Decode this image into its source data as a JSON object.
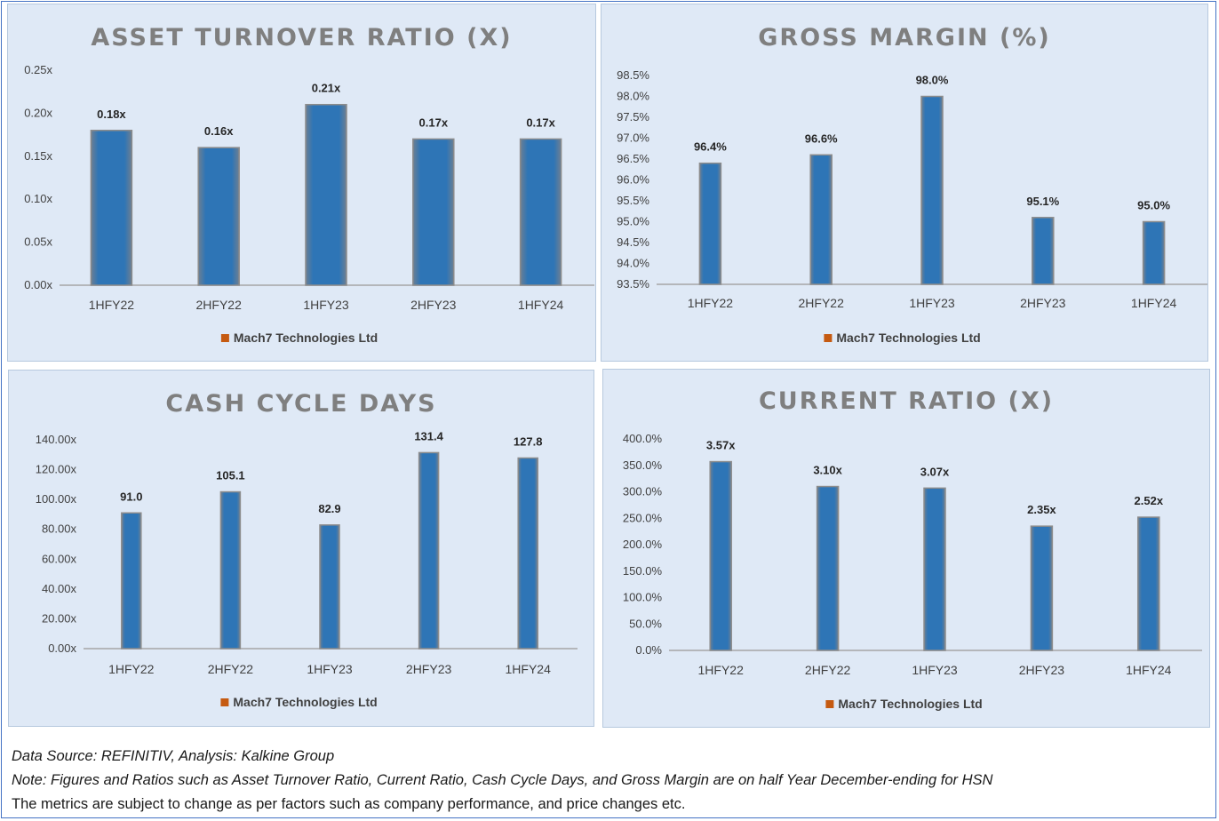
{
  "chart_data": [
    {
      "type": "bar",
      "title": "ASSET TURNOVER RATIO (X)",
      "categories": [
        "1HFY22",
        "2HFY22",
        "1HFY23",
        "2HFY23",
        "1HFY24"
      ],
      "series": [
        {
          "name": "Mach7 Technologies Ltd",
          "values": [
            0.18,
            0.16,
            0.21,
            0.17,
            0.17
          ]
        }
      ],
      "data_labels": [
        "0.18x",
        "0.16x",
        "0.21x",
        "0.17x",
        "0.17x"
      ],
      "ylim": [
        0,
        0.25
      ],
      "yticks": [
        0,
        0.05,
        0.1,
        0.15,
        0.2,
        0.25
      ],
      "ytick_labels": [
        "0.00x",
        "0.05x",
        "0.10x",
        "0.15x",
        "0.20x",
        "0.25x"
      ],
      "legend": "bottom"
    },
    {
      "type": "bar",
      "title": "GROSS MARGIN (%)",
      "categories": [
        "1HFY22",
        "2HFY22",
        "1HFY23",
        "2HFY23",
        "1HFY24"
      ],
      "series": [
        {
          "name": "Mach7 Technologies Ltd",
          "values": [
            96.4,
            96.6,
            98.0,
            95.1,
            95.0
          ]
        }
      ],
      "data_labels": [
        "96.4%",
        "96.6%",
        "98.0%",
        "95.1%",
        "95.0%"
      ],
      "ylim": [
        93.5,
        98.5
      ],
      "yticks": [
        93.5,
        94.0,
        94.5,
        95.0,
        95.5,
        96.0,
        96.5,
        97.0,
        97.5,
        98.0,
        98.5
      ],
      "ytick_labels": [
        "93.5%",
        "94.0%",
        "94.5%",
        "95.0%",
        "95.5%",
        "96.0%",
        "96.5%",
        "97.0%",
        "97.5%",
        "98.0%",
        "98.5%"
      ],
      "legend": "bottom"
    },
    {
      "type": "bar",
      "title": "CASH CYCLE DAYS",
      "categories": [
        "1HFY22",
        "2HFY22",
        "1HFY23",
        "2HFY23",
        "1HFY24"
      ],
      "series": [
        {
          "name": "Mach7 Technologies Ltd",
          "values": [
            91.0,
            105.1,
            82.9,
            131.4,
            127.8
          ]
        }
      ],
      "data_labels": [
        "91.0",
        "105.1",
        "82.9",
        "131.4",
        "127.8"
      ],
      "ylim": [
        0,
        140
      ],
      "yticks": [
        0,
        20,
        40,
        60,
        80,
        100,
        120,
        140
      ],
      "ytick_labels": [
        "0.00x",
        "20.00x",
        "40.00x",
        "60.00x",
        "80.00x",
        "100.00x",
        "120.00x",
        "140.00x"
      ],
      "legend": "bottom"
    },
    {
      "type": "bar",
      "title": "CURRENT RATIO (X)",
      "categories": [
        "1HFY22",
        "2HFY22",
        "1HFY23",
        "2HFY23",
        "1HFY24"
      ],
      "series": [
        {
          "name": "Mach7 Technologies Ltd",
          "values": [
            3.57,
            3.1,
            3.07,
            2.35,
            2.52
          ]
        }
      ],
      "data_labels": [
        "3.57x",
        "3.10x",
        "3.07x",
        "2.35x",
        "2.52x"
      ],
      "ylim": [
        0,
        4
      ],
      "yticks": [
        0,
        0.5,
        1,
        1.5,
        2,
        2.5,
        3,
        3.5,
        4
      ],
      "ytick_labels": [
        "0.0%",
        "50.0%",
        "100.0%",
        "150.0%",
        "200.0%",
        "250.0%",
        "300.0%",
        "350.0%",
        "400.0%"
      ],
      "legend": "bottom"
    }
  ],
  "colors": {
    "bar_fill": "#2e75b6",
    "bar_edge": "#8c8c8c",
    "legend_marker": "#c55a11",
    "panel_bg": "#dfe9f6",
    "title": "#7f7f7f"
  },
  "footer": {
    "line1": "Data Source: REFINITIV, Analysis: Kalkine Group",
    "line2": "Note: Figures and Ratios such as Asset Turnover Ratio, Current Ratio, Cash Cycle Days, and Gross Margin are on half Year December-ending for HSN",
    "line3": "The metrics are subject to change as per factors such as company performance, and price changes etc."
  }
}
